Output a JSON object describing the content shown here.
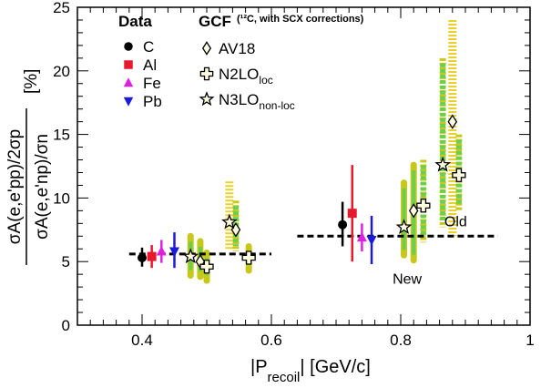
{
  "chart_data": {
    "type": "scatter",
    "title": "",
    "xlabel_main": "|P",
    "xlabel_sub": "recoil",
    "xlabel_tail": "| [GeV/c]",
    "ylabel_numerator": "σA(e,e'pp)/2σp",
    "ylabel_denominator": "σA(e,e'np)/σn",
    "ylabel_unit": "[%]",
    "xlim": [
      0.3,
      1.0
    ],
    "ylim": [
      0,
      25
    ],
    "xticks": [
      "0.4",
      "0.6",
      "0.8",
      "1"
    ],
    "yticks": [
      "0",
      "5",
      "10",
      "15",
      "20",
      "25"
    ],
    "colors": {
      "C": "#000000",
      "Al": "#e8192c",
      "Fe": "#e020e0",
      "Pb": "#1a1ad8",
      "band_inner": "#6ccf4a",
      "band_outer": "#c8c81a",
      "band_hatch": "#e8d22a"
    },
    "legend": {
      "data_title": "Data",
      "gcf_title": "GCF",
      "gcf_note": "(¹²C, with SCX corrections)",
      "data_entries": [
        "C",
        "Al",
        "Fe",
        "Pb"
      ],
      "gcf_entries": [
        {
          "label": "AV18",
          "sub": ""
        },
        {
          "label": "N2LO",
          "sub": "loc"
        },
        {
          "label": "N3LO",
          "sub": "non-loc"
        }
      ]
    },
    "series": [
      {
        "name": "C",
        "marker": "circle",
        "points": [
          {
            "x": 0.4,
            "y": 5.3,
            "ylo": 4.6,
            "yhi": 6.1
          },
          {
            "x": 0.71,
            "y": 7.9,
            "ylo": 6.2,
            "yhi": 9.7
          }
        ]
      },
      {
        "name": "Al",
        "marker": "square",
        "points": [
          {
            "x": 0.415,
            "y": 5.4,
            "ylo": 4.5,
            "yhi": 6.3
          },
          {
            "x": 0.725,
            "y": 8.8,
            "ylo": 5.0,
            "yhi": 12.6
          }
        ]
      },
      {
        "name": "Fe",
        "marker": "triangle-up",
        "points": [
          {
            "x": 0.43,
            "y": 5.8,
            "ylo": 4.9,
            "yhi": 6.7
          },
          {
            "x": 0.74,
            "y": 6.9,
            "ylo": 5.8,
            "yhi": 8.0
          }
        ]
      },
      {
        "name": "Pb",
        "marker": "triangle-down",
        "points": [
          {
            "x": 0.45,
            "y": 5.8,
            "ylo": 4.5,
            "yhi": 7.3
          },
          {
            "x": 0.755,
            "y": 6.7,
            "ylo": 4.8,
            "yhi": 8.6
          }
        ]
      },
      {
        "name": "AV18",
        "marker": "diamond",
        "points": [
          {
            "x": 0.49,
            "y": 5.0
          },
          {
            "x": 0.545,
            "y": 7.5
          },
          {
            "x": 0.82,
            "y": 9.0
          },
          {
            "x": 0.88,
            "y": 16.0
          }
        ]
      },
      {
        "name": "N2LO",
        "marker": "cross",
        "points": [
          {
            "x": 0.5,
            "y": 4.6
          },
          {
            "x": 0.565,
            "y": 5.3
          },
          {
            "x": 0.835,
            "y": 9.4
          },
          {
            "x": 0.89,
            "y": 11.8
          }
        ]
      },
      {
        "name": "N3LO",
        "marker": "star",
        "points": [
          {
            "x": 0.475,
            "y": 5.4
          },
          {
            "x": 0.535,
            "y": 8.1
          },
          {
            "x": 0.805,
            "y": 7.7
          },
          {
            "x": 0.865,
            "y": 12.6
          }
        ]
      }
    ],
    "uncertainty_bands": [
      {
        "x": 0.475,
        "lo": 3.9,
        "hi": 7.0,
        "style": "solid"
      },
      {
        "x": 0.49,
        "lo": 3.8,
        "hi": 6.6,
        "style": "solid"
      },
      {
        "x": 0.5,
        "lo": 3.5,
        "hi": 5.7,
        "style": "solid"
      },
      {
        "x": 0.535,
        "lo": 6.0,
        "hi": 11.3,
        "style": "hatched"
      },
      {
        "x": 0.545,
        "lo": 5.8,
        "hi": 9.8,
        "style": "dashed"
      },
      {
        "x": 0.565,
        "lo": 4.3,
        "hi": 6.2,
        "style": "solid"
      },
      {
        "x": 0.805,
        "lo": 5.5,
        "hi": 11.2,
        "style": "solid"
      },
      {
        "x": 0.82,
        "lo": 5.1,
        "hi": 12.6,
        "style": "solid"
      },
      {
        "x": 0.835,
        "lo": 6.5,
        "hi": 13.0,
        "style": "dashed"
      },
      {
        "x": 0.865,
        "lo": 7.7,
        "hi": 21.0,
        "style": "dashed"
      },
      {
        "x": 0.88,
        "lo": 7.0,
        "hi": 24.0,
        "style": "hatched"
      },
      {
        "x": 0.89,
        "lo": 9.0,
        "hi": 15.0,
        "style": "dashed"
      }
    ],
    "average_lines": [
      {
        "x1": 0.38,
        "x2": 0.6,
        "y": 5.6
      },
      {
        "x1": 0.64,
        "x2": 0.95,
        "y": 7.0
      }
    ],
    "annotations": [
      {
        "text": "New",
        "x": 0.81,
        "y": 3.7
      },
      {
        "text": "Old",
        "x": 0.885,
        "y": 8.2
      }
    ]
  }
}
